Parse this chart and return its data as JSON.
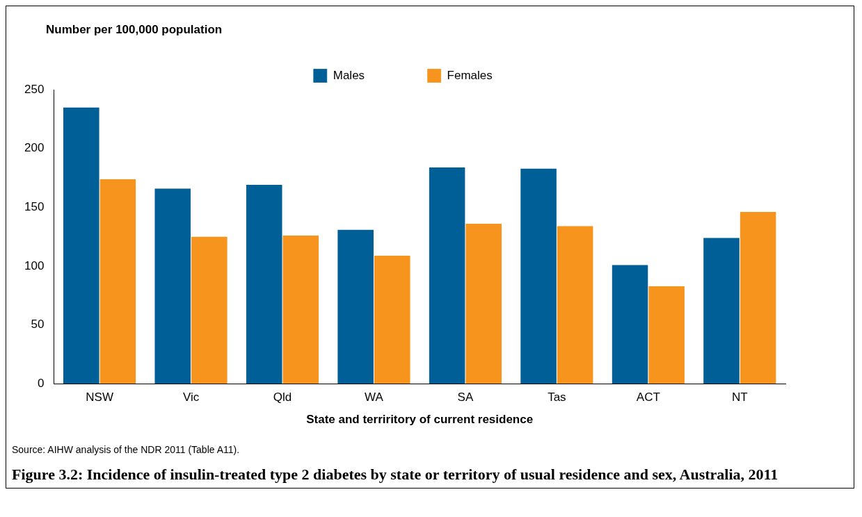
{
  "chart_data": {
    "type": "bar",
    "title": "Figure 3.2: Incidence of insulin-treated type 2 diabetes by state or territory of usual residence and sex, Australia, 2011",
    "ylabel": "Number per 100,000 population",
    "xlabel": "State and terriritory of current residence",
    "annotations": [
      "Source: AIHW analysis of the NDR 2011 (Table A11)."
    ],
    "categories": [
      "NSW",
      "Vic",
      "Qld",
      "WA",
      "SA",
      "Tas",
      "ACT",
      "NT"
    ],
    "series": [
      {
        "name": "Males",
        "color": "#005f96",
        "values": [
          235,
          166,
          169,
          131,
          184,
          183,
          101,
          124
        ]
      },
      {
        "name": "Females",
        "color": "#f7941d",
        "values": [
          174,
          125,
          126,
          109,
          136,
          134,
          83,
          146
        ]
      }
    ],
    "ylim": [
      0,
      250
    ],
    "yticks": [
      0,
      50,
      100,
      150,
      200,
      250
    ],
    "grid": false,
    "legend": "top"
  }
}
